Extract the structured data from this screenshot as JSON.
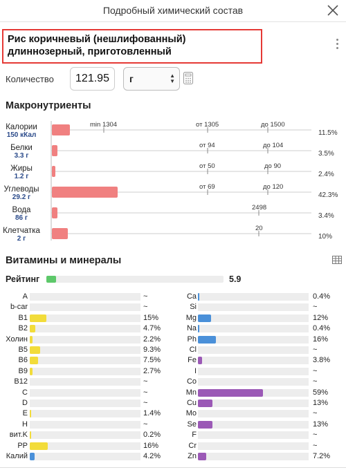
{
  "header": {
    "title": "Подробный химический состав"
  },
  "food": {
    "name": "Рис коричневый (нешлифованный) длиннозерный, приготовленный"
  },
  "quantity": {
    "label": "Количество",
    "value": "121.95",
    "unit": "г"
  },
  "macros": {
    "title": "Макронутриенты",
    "tick_labels": [
      "min 1304",
      "от 1305",
      "до 1500",
      "от 94",
      "до 104",
      "от 50",
      "до 90",
      "от 69",
      "до 120",
      "2498",
      "20"
    ],
    "items": [
      {
        "name": "Калории",
        "amount": "150 кКал",
        "percent": "11.5%",
        "value": 11.5
      },
      {
        "name": "Белки",
        "amount": "3.3 г",
        "percent": "3.5%",
        "value": 3.5
      },
      {
        "name": "Жиры",
        "amount": "1.2 г",
        "percent": "2.4%",
        "value": 2.4
      },
      {
        "name": "Углеводы",
        "amount": "29.2 г",
        "percent": "42.3%",
        "value": 42.3
      },
      {
        "name": "Вода",
        "amount": "86 г",
        "percent": "3.4%",
        "value": 3.4
      },
      {
        "name": "Клетчатка",
        "amount": "2 г",
        "percent": "10%",
        "value": 10
      }
    ]
  },
  "vitamins": {
    "title": "Витамины и минералы",
    "rating": {
      "label": "Рейтинг",
      "value": "5.9",
      "fill_fraction": 0.055
    },
    "colors": {
      "vitamin": "#f2dc3a",
      "blue": "#4a90d9",
      "purple": "#9b59b6",
      "macro_bar": "#f08080",
      "rating": "#5dc86a"
    },
    "left": [
      {
        "name": "A",
        "value": "~",
        "level": 0,
        "color": "vitamin"
      },
      {
        "name": "b-car",
        "value": "~",
        "level": 0,
        "color": "vitamin"
      },
      {
        "name": "B1",
        "value": "15%",
        "level": 15,
        "color": "vitamin"
      },
      {
        "name": "B2",
        "value": "4.7%",
        "level": 4.7,
        "color": "vitamin"
      },
      {
        "name": "Холин",
        "value": "2.2%",
        "level": 2.2,
        "color": "vitamin"
      },
      {
        "name": "B5",
        "value": "9.3%",
        "level": 9.3,
        "color": "vitamin"
      },
      {
        "name": "B6",
        "value": "7.5%",
        "level": 7.5,
        "color": "vitamin"
      },
      {
        "name": "B9",
        "value": "2.7%",
        "level": 2.7,
        "color": "vitamin"
      },
      {
        "name": "B12",
        "value": "~",
        "level": 0,
        "color": "vitamin"
      },
      {
        "name": "C",
        "value": "~",
        "level": 0,
        "color": "vitamin"
      },
      {
        "name": "D",
        "value": "~",
        "level": 0,
        "color": "vitamin"
      },
      {
        "name": "E",
        "value": "1.4%",
        "level": 1.4,
        "color": "vitamin"
      },
      {
        "name": "H",
        "value": "~",
        "level": 0,
        "color": "vitamin"
      },
      {
        "name": "вит.K",
        "value": "0.2%",
        "level": 0.2,
        "color": "vitamin"
      },
      {
        "name": "PP",
        "value": "16%",
        "level": 16,
        "color": "vitamin"
      },
      {
        "name": "Калий",
        "value": "4.2%",
        "level": 4.2,
        "color": "blue"
      }
    ],
    "right": [
      {
        "name": "Ca",
        "value": "0.4%",
        "level": 0.4,
        "color": "blue"
      },
      {
        "name": "Si",
        "value": "~",
        "level": 0,
        "color": "blue"
      },
      {
        "name": "Mg",
        "value": "12%",
        "level": 12,
        "color": "blue"
      },
      {
        "name": "Na",
        "value": "0.4%",
        "level": 0.4,
        "color": "blue"
      },
      {
        "name": "Ph",
        "value": "16%",
        "level": 16,
        "color": "blue"
      },
      {
        "name": "Cl",
        "value": "~",
        "level": 0,
        "color": "blue"
      },
      {
        "name": "Fe",
        "value": "3.8%",
        "level": 3.8,
        "color": "purple"
      },
      {
        "name": "I",
        "value": "~",
        "level": 0,
        "color": "purple"
      },
      {
        "name": "Co",
        "value": "~",
        "level": 0,
        "color": "purple"
      },
      {
        "name": "Mn",
        "value": "59%",
        "level": 59,
        "color": "purple"
      },
      {
        "name": "Cu",
        "value": "13%",
        "level": 13,
        "color": "purple"
      },
      {
        "name": "Mo",
        "value": "~",
        "level": 0,
        "color": "purple"
      },
      {
        "name": "Se",
        "value": "13%",
        "level": 13,
        "color": "purple"
      },
      {
        "name": "F",
        "value": "~",
        "level": 0,
        "color": "purple"
      },
      {
        "name": "Cr",
        "value": "~",
        "level": 0,
        "color": "purple"
      },
      {
        "name": "Zn",
        "value": "7.2%",
        "level": 7.2,
        "color": "purple"
      }
    ]
  }
}
